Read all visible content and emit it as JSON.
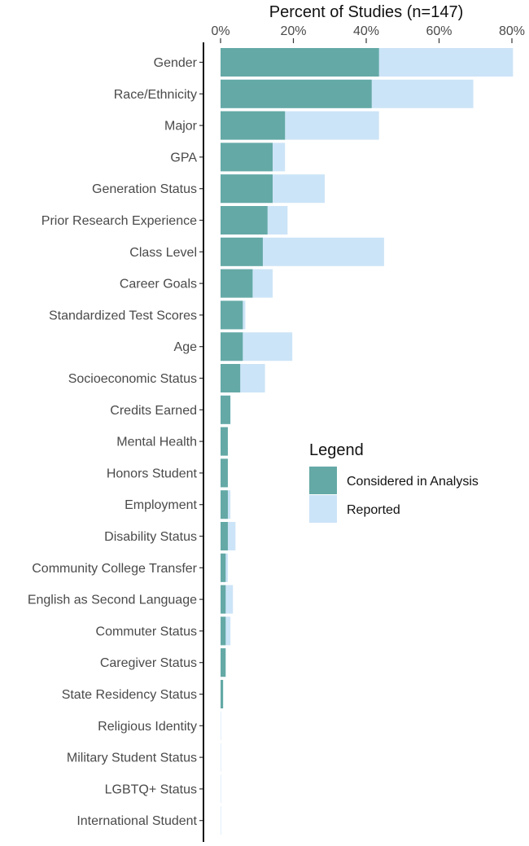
{
  "chart_data": {
    "type": "bar",
    "orientation": "horizontal",
    "stacking": "overlay",
    "title": "Percent of Studies (n=147)",
    "x_axis_position": "top",
    "xlim": [
      0,
      82
    ],
    "xticks": [
      0,
      20,
      40,
      60,
      80
    ],
    "xtick_labels": [
      "0%",
      "20%",
      "40%",
      "60%",
      "80%"
    ],
    "grid": false,
    "categories": [
      "Gender",
      "Race/Ethnicity",
      "Major",
      "GPA",
      "Generation Status",
      "Prior Research Experience",
      "Class Level",
      "Career Goals",
      "Standardized Test Scores",
      "Age",
      "Socioeconomic Status",
      "Credits Earned",
      "Mental Health",
      "Honors Student",
      "Employment",
      "Disability Status",
      "Community College Transfer",
      "English as Second Language",
      "Commuter Status",
      "Caregiver Status",
      "State Residency Status",
      "Religious Identity",
      "Military Student Status",
      "LGBTQ+ Status",
      "International Student"
    ],
    "series": [
      {
        "name": "Reported",
        "color": "#cce4f7",
        "values": [
          80.3,
          69.4,
          43.5,
          17.7,
          28.6,
          18.4,
          44.9,
          14.3,
          6.8,
          19.7,
          12.2,
          2.7,
          2.0,
          2.0,
          2.7,
          4.1,
          2.0,
          3.4,
          2.7,
          1.4,
          0.7,
          0.0,
          0.0,
          0.0,
          0.0
        ]
      },
      {
        "name": "Considered in Analysis",
        "color": "#64a9a6",
        "values": [
          43.5,
          41.5,
          17.7,
          14.3,
          14.3,
          12.9,
          11.6,
          8.8,
          6.1,
          6.1,
          5.4,
          2.7,
          2.0,
          2.0,
          2.0,
          2.0,
          1.4,
          1.4,
          1.4,
          1.4,
          0.7,
          0.0,
          0.0,
          0.0,
          0.0
        ]
      }
    ],
    "legend": {
      "title": "Legend",
      "placement": "right-middle",
      "entries": [
        "Considered in Analysis",
        "Reported"
      ]
    }
  }
}
